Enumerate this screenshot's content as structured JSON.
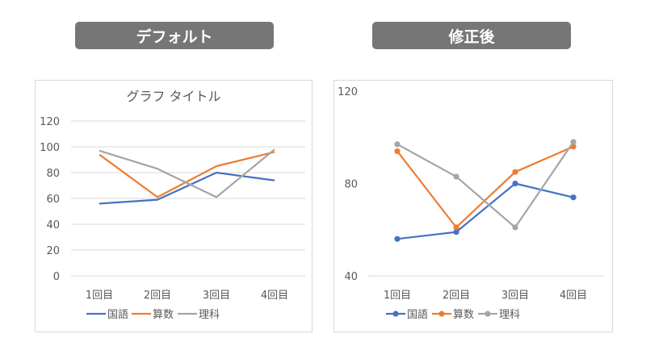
{
  "headers": {
    "left": "デフォルト",
    "right": "修正後"
  },
  "chart_data": [
    {
      "type": "line",
      "title": "グラフ タイトル",
      "categories": [
        "1回目",
        "2回目",
        "3回目",
        "4回目"
      ],
      "series": [
        {
          "name": "国語",
          "values": [
            56,
            59,
            80,
            74
          ],
          "color": "#4472c4"
        },
        {
          "name": "算数",
          "values": [
            94,
            61,
            85,
            96
          ],
          "color": "#ed7d31"
        },
        {
          "name": "理科",
          "values": [
            97,
            83,
            61,
            98
          ],
          "color": "#a5a5a5"
        }
      ],
      "ylim": [
        0,
        120
      ],
      "yticks": [
        0,
        20,
        40,
        60,
        80,
        100,
        120
      ],
      "markers": false,
      "grid": true,
      "legend": "bottom"
    },
    {
      "type": "line",
      "title": "",
      "categories": [
        "1回目",
        "2回目",
        "3回目",
        "4回目"
      ],
      "series": [
        {
          "name": "国語",
          "values": [
            56,
            59,
            80,
            74
          ],
          "color": "#4472c4"
        },
        {
          "name": "算数",
          "values": [
            94,
            61,
            85,
            96
          ],
          "color": "#ed7d31"
        },
        {
          "name": "理科",
          "values": [
            97,
            83,
            61,
            98
          ],
          "color": "#a5a5a5"
        }
      ],
      "ylim": [
        40,
        120
      ],
      "yticks": [
        40,
        80,
        120
      ],
      "markers": true,
      "grid": false,
      "legend": "bottom"
    }
  ]
}
